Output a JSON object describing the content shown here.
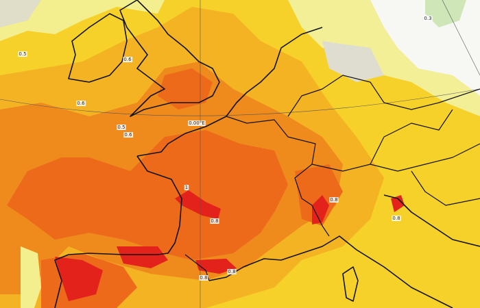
{
  "map": {
    "labels": [
      {
        "text": "0.5"
      },
      {
        "text": "0.6"
      },
      {
        "text": "0.6"
      },
      {
        "text": "0.5"
      },
      {
        "text": "0.6"
      },
      {
        "text": "0.00°E"
      },
      {
        "text": "1"
      },
      {
        "text": "0.8"
      },
      {
        "text": "0.8"
      },
      {
        "text": "0.8"
      },
      {
        "text": "0.8"
      },
      {
        "text": "0.8"
      },
      {
        "text": "0.3"
      }
    ]
  }
}
